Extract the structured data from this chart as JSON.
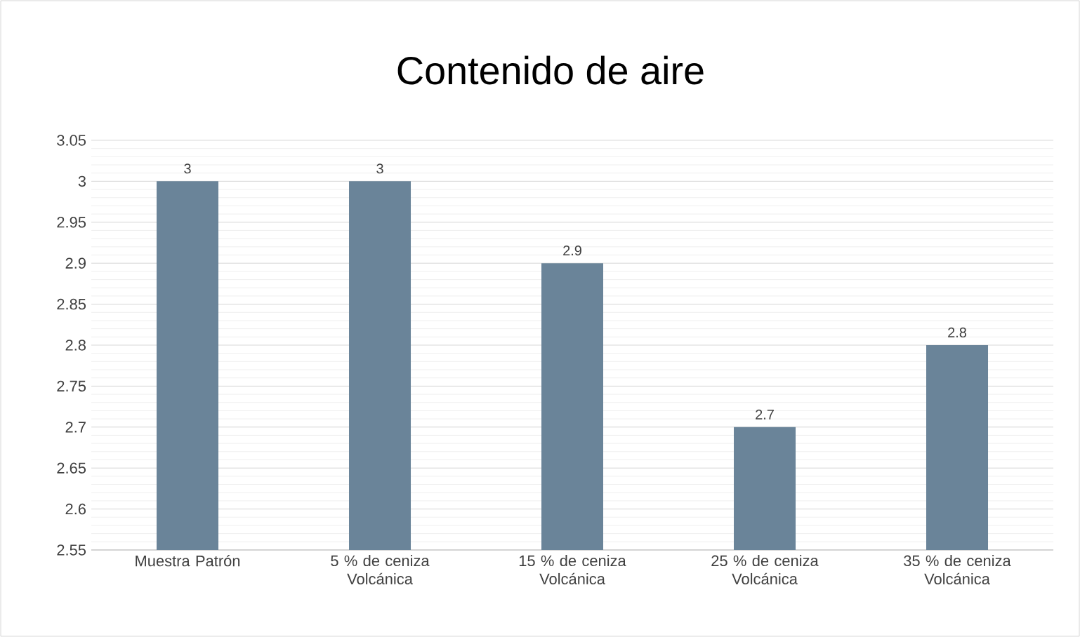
{
  "chart_data": {
    "type": "bar",
    "title": "Contenido de aire",
    "categories": [
      "Muestra Patrón",
      "5 % de ceniza Volcánica",
      "15 % de ceniza Volcánica",
      "25 % de ceniza Volcánica",
      "35 % de ceniza Volcánica"
    ],
    "values": [
      3,
      3,
      2.9,
      2.7,
      2.8
    ],
    "color": "#6a8499",
    "ylim": [
      2.55,
      3.05
    ],
    "yticks": [
      2.55,
      2.6,
      2.65,
      2.7,
      2.75,
      2.8,
      2.85,
      2.9,
      2.95,
      3,
      3.05
    ],
    "grid": "y",
    "data_labels": true
  }
}
